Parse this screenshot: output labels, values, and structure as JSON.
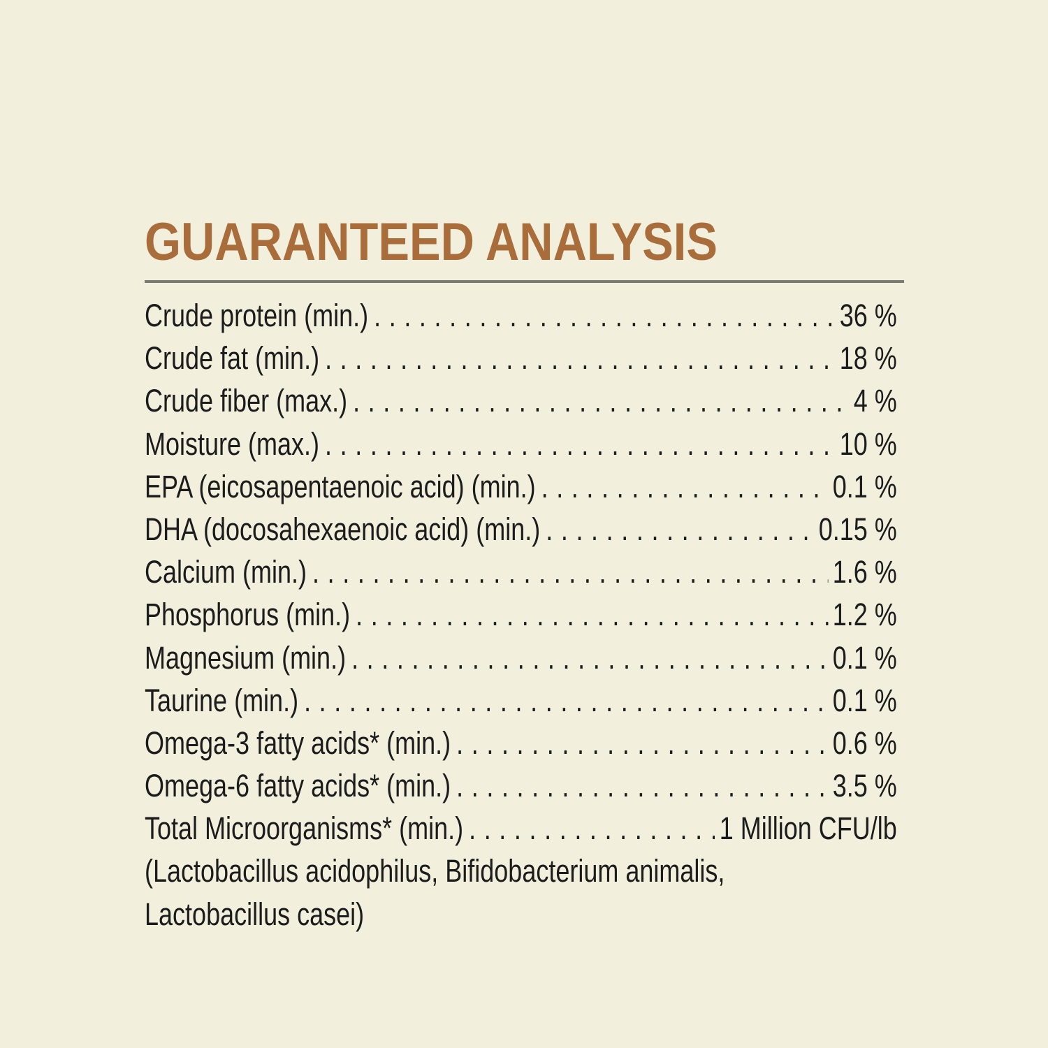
{
  "title": "GUARANTEED ANALYSIS",
  "rows": [
    {
      "label": "Crude protein (min.)",
      "value": "36 %"
    },
    {
      "label": "Crude fat (min.)",
      "value": "18 %"
    },
    {
      "label": "Crude fiber (max.)",
      "value": "4 %"
    },
    {
      "label": "Moisture (max.)",
      "value": "10 %"
    },
    {
      "label": "EPA (eicosapentaenoic acid) (min.)",
      "value": "0.1 %"
    },
    {
      "label": "DHA (docosahexaenoic acid) (min.)",
      "value": "0.15 %"
    },
    {
      "label": "Calcium (min.)",
      "value": "1.6 %"
    },
    {
      "label": "Phosphorus (min.)",
      "value": "1.2 %"
    },
    {
      "label": "Magnesium (min.)",
      "value": "0.1 %"
    },
    {
      "label": "Taurine (min.)",
      "value": "0.1 %"
    },
    {
      "label": "Omega-3 fatty acids* (min.)",
      "value": "0.6 %"
    },
    {
      "label": "Omega-6 fatty acids* (min.)",
      "value": "3.5 %"
    },
    {
      "label": "Total Microorganisms* (min.)",
      "value": "1 Million CFU/lb"
    }
  ],
  "note_lines": [
    "(Lactobacillus acidophilus, Bifidobacterium animalis,",
    "Lactobacillus casei)"
  ],
  "colors": {
    "background": "#f2efdc",
    "title": "#a96d3b",
    "rule": "#7a7a75",
    "text": "#1c1c1c"
  }
}
